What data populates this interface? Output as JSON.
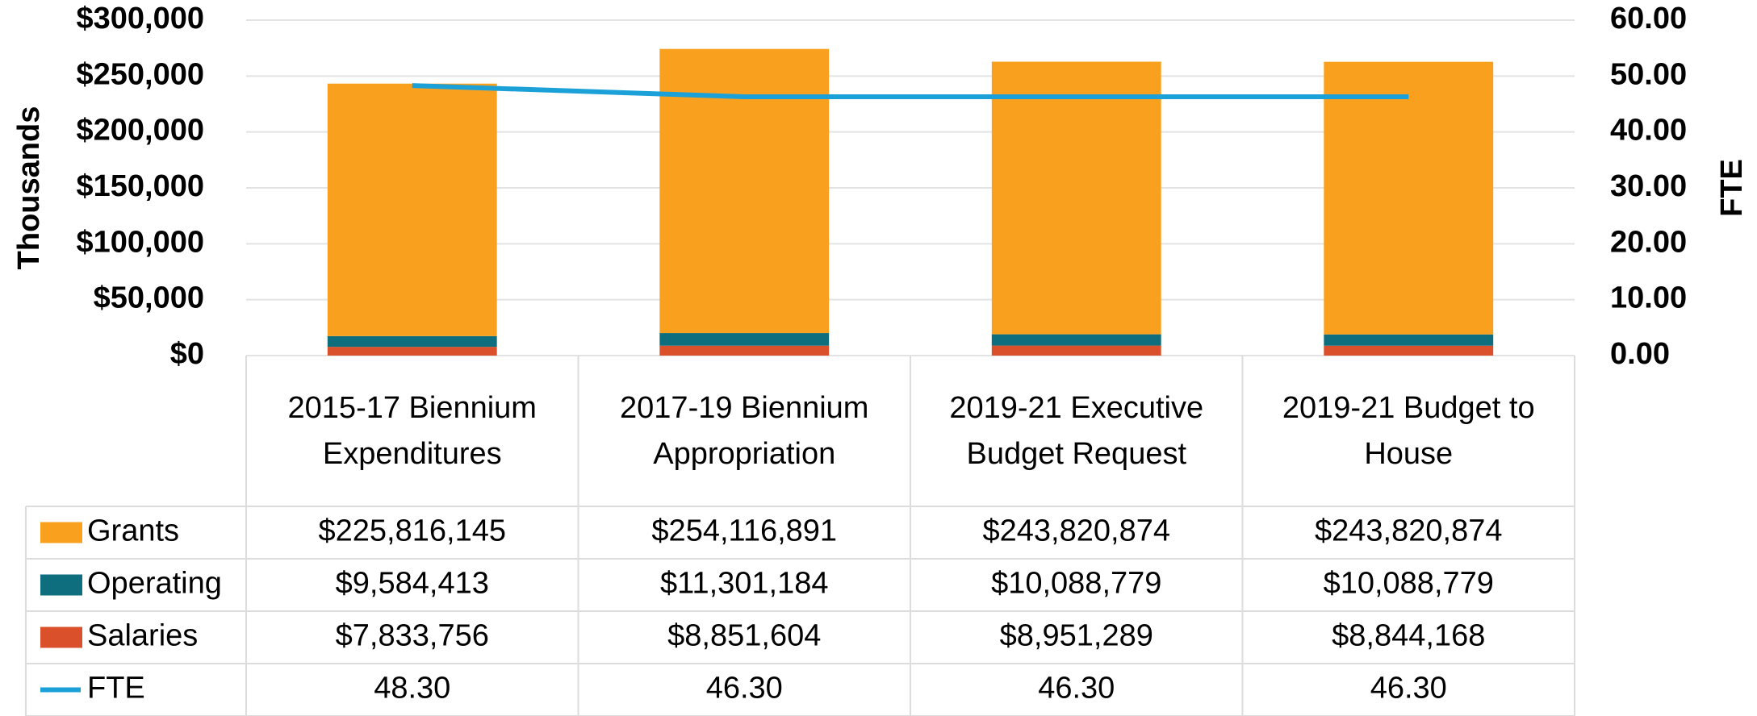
{
  "chart_data": {
    "type": "bar",
    "stacked": true,
    "y_axis_label": "Thousands",
    "y2_axis_label": "FTE",
    "categories": [
      "2015-17 Biennium Expenditures",
      "2017-19 Biennium Appropriation",
      "2019-21 Executive Budget Request",
      "2019-21 Budget to House"
    ],
    "series": [
      {
        "name": "Grants",
        "color": "#F9A11F",
        "values": [
          225816.145,
          254116.891,
          243820.874,
          243820.874
        ],
        "value_labels": [
          "$225,816,145",
          "$254,116,891",
          "$243,820,874",
          "$243,820,874"
        ]
      },
      {
        "name": "Operating",
        "color": "#0E6E7E",
        "values": [
          9584.413,
          11301.184,
          10088.779,
          10088.779
        ],
        "value_labels": [
          "$9,584,413",
          "$11,301,184",
          "$10,088,779",
          "$10,088,779"
        ]
      },
      {
        "name": "Salaries",
        "color": "#D9502B",
        "values": [
          7833.756,
          8851.604,
          8951.289,
          8844.168
        ],
        "value_labels": [
          "$7,833,756",
          "$8,851,604",
          "$8,951,289",
          "$8,844,168"
        ]
      },
      {
        "name": "FTE",
        "type": "line",
        "axis": "y2",
        "color": "#1BA1D8",
        "values": [
          48.3,
          46.3,
          46.3,
          46.3
        ],
        "value_labels": [
          "48.30",
          "46.30",
          "46.30",
          "46.30"
        ]
      }
    ],
    "ylim": [
      0,
      300000
    ],
    "yticks": [
      {
        "value": 0,
        "label": "$0"
      },
      {
        "value": 50000,
        "label": "$50,000"
      },
      {
        "value": 100000,
        "label": "$100,000"
      },
      {
        "value": 150000,
        "label": "$150,000"
      },
      {
        "value": 200000,
        "label": "$200,000"
      },
      {
        "value": 250000,
        "label": "$250,000"
      },
      {
        "value": 300000,
        "label": "$300,000"
      }
    ],
    "y2lim": [
      0,
      60
    ],
    "y2ticks": [
      {
        "value": 0,
        "label": "0.00"
      },
      {
        "value": 10,
        "label": "10.00"
      },
      {
        "value": 20,
        "label": "20.00"
      },
      {
        "value": 30,
        "label": "30.00"
      },
      {
        "value": 40,
        "label": "40.00"
      },
      {
        "value": 50,
        "label": "50.00"
      },
      {
        "value": 60,
        "label": "60.00"
      }
    ],
    "grid": true
  }
}
